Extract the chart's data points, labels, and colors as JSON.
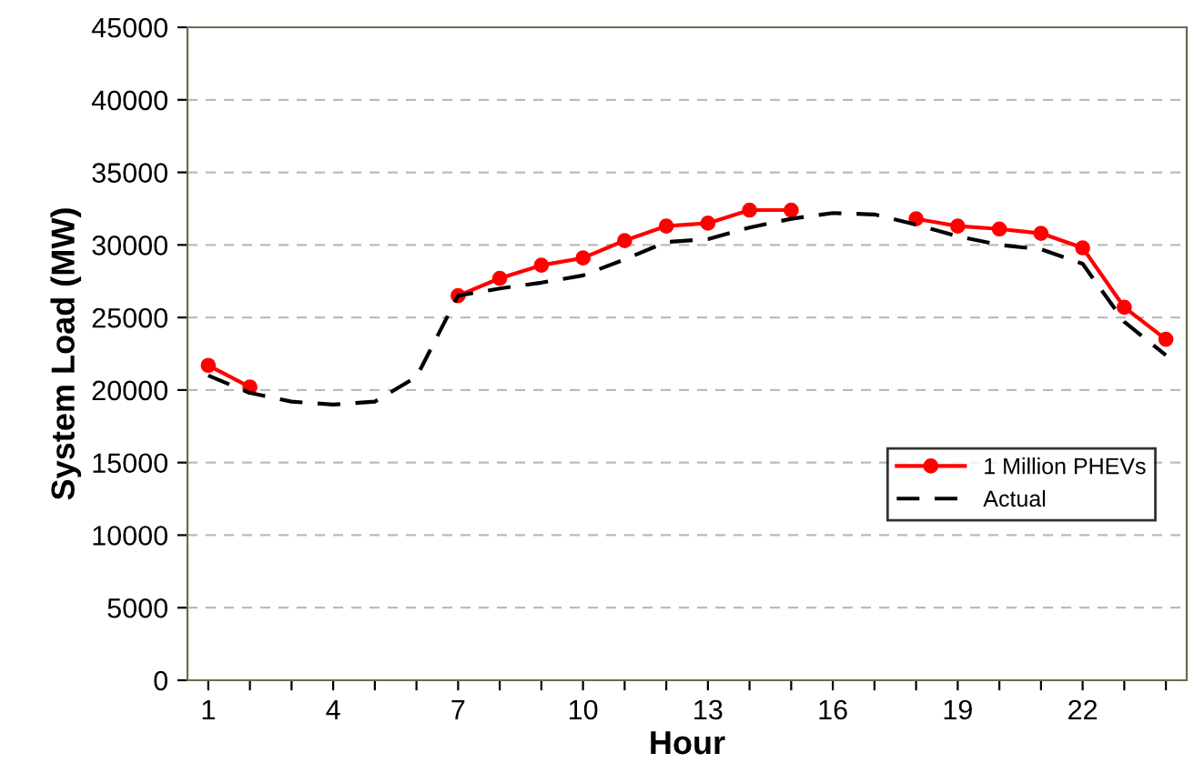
{
  "chart_data": {
    "type": "line",
    "xlabel": "Hour",
    "ylabel": "System Load (MW)",
    "x": [
      1,
      2,
      3,
      4,
      5,
      6,
      7,
      8,
      9,
      10,
      11,
      12,
      13,
      14,
      15,
      16,
      17,
      18,
      19,
      20,
      21,
      22,
      23,
      24
    ],
    "series": [
      {
        "name": "1 Million PHEVs",
        "color": "#ff0000",
        "marker": "circle",
        "line_style": "solid",
        "values": [
          21700,
          20200,
          null,
          null,
          null,
          null,
          26500,
          27700,
          28600,
          29100,
          30300,
          31300,
          31500,
          32400,
          32400,
          null,
          null,
          31800,
          31300,
          31100,
          30800,
          29800,
          25700,
          23500
        ]
      },
      {
        "name": "Actual",
        "color": "#000000",
        "marker": "none",
        "line_style": "dashed",
        "values": [
          21000,
          19800,
          19200,
          19000,
          19200,
          20900,
          26500,
          27000,
          27400,
          27900,
          29000,
          30200,
          30400,
          31200,
          31800,
          32200,
          32100,
          31400,
          30600,
          30000,
          29700,
          28700,
          24700,
          22400
        ]
      }
    ],
    "xlim": [
      0.5,
      24.5
    ],
    "xticks": [
      1,
      {
        "value": 2,
        "label": null
      },
      {
        "value": 3,
        "label": null
      },
      4,
      {
        "value": 5,
        "label": null
      },
      {
        "value": 6,
        "label": null
      },
      7,
      {
        "value": 8,
        "label": null
      },
      {
        "value": 9,
        "label": null
      },
      10,
      {
        "value": 11,
        "label": null
      },
      {
        "value": 12,
        "label": null
      },
      13,
      {
        "value": 14,
        "label": null
      },
      {
        "value": 15,
        "label": null
      },
      16,
      {
        "value": 17,
        "label": null
      },
      {
        "value": 18,
        "label": null
      },
      19,
      {
        "value": 20,
        "label": null
      },
      {
        "value": 21,
        "label": null
      },
      22,
      {
        "value": 23,
        "label": null
      },
      {
        "value": 24,
        "label": null
      }
    ],
    "ylim": [
      0,
      45000
    ],
    "yticks": [
      0,
      5000,
      10000,
      15000,
      20000,
      25000,
      30000,
      35000,
      40000,
      45000
    ],
    "grid": "y",
    "legend": "right"
  }
}
